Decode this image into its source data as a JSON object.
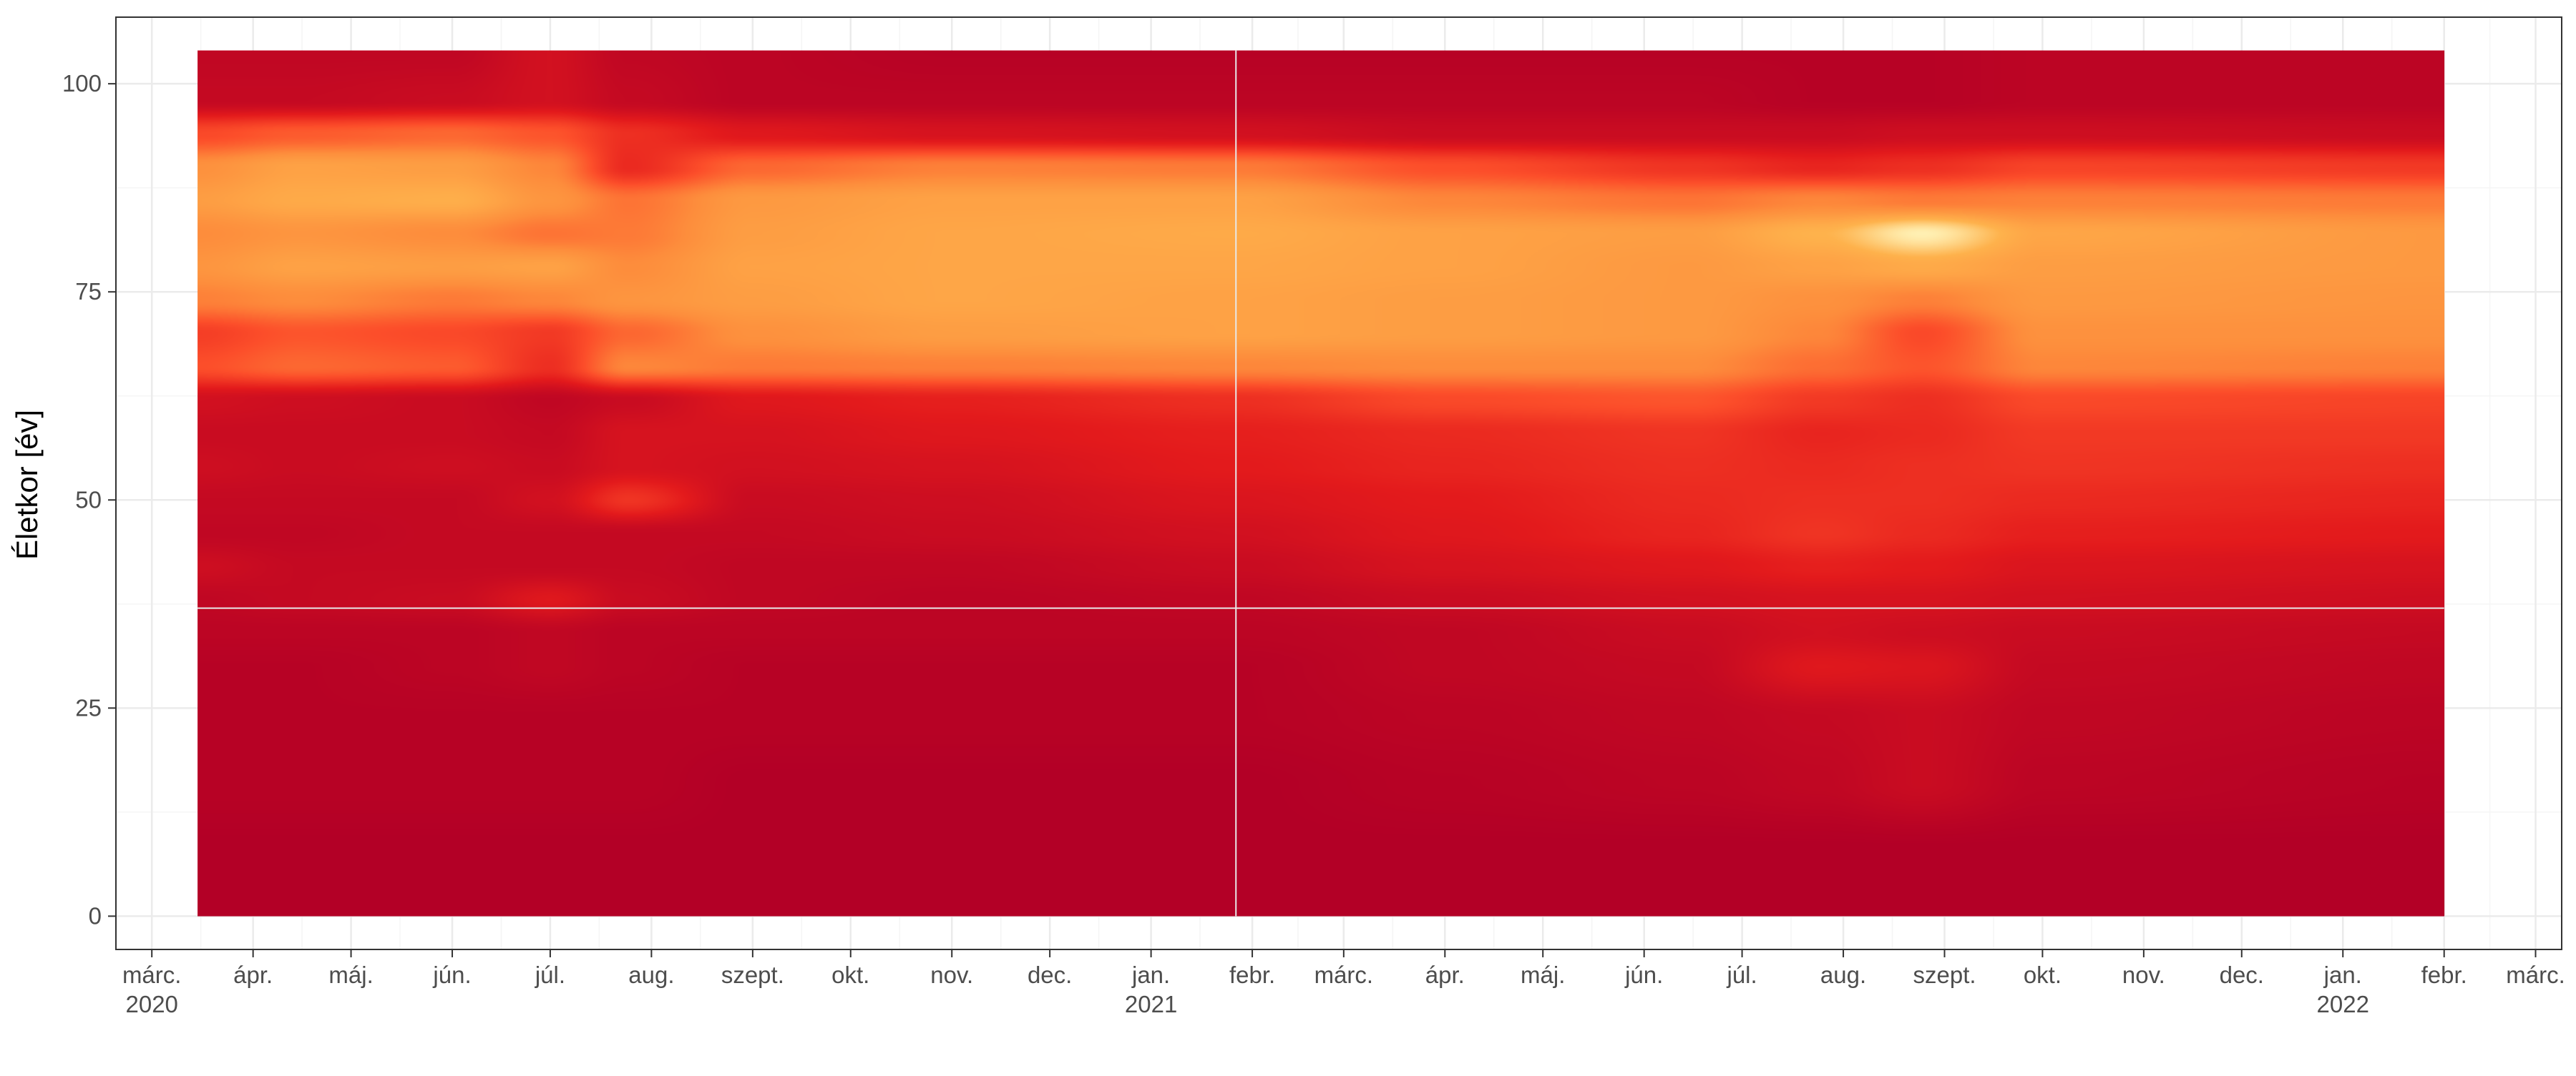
{
  "chart_data": {
    "type": "heatmap",
    "title": "",
    "xlabel": "",
    "ylabel": "Életkor [év]",
    "x_range": [
      "2020-02-19",
      "2022-03-09"
    ],
    "y_range": [
      -4,
      108
    ],
    "grid": true,
    "legend": "none",
    "y_ticks": [
      0,
      25,
      50,
      75,
      100
    ],
    "x_ticks": [
      {
        "date": "2020-03-01",
        "label": "márc.",
        "year": "2020"
      },
      {
        "date": "2020-04-01",
        "label": "ápr."
      },
      {
        "date": "2020-05-01",
        "label": "máj."
      },
      {
        "date": "2020-06-01",
        "label": "jún."
      },
      {
        "date": "2020-07-01",
        "label": "júl."
      },
      {
        "date": "2020-08-01",
        "label": "aug."
      },
      {
        "date": "2020-09-01",
        "label": "szept."
      },
      {
        "date": "2020-10-01",
        "label": "okt."
      },
      {
        "date": "2020-11-01",
        "label": "nov."
      },
      {
        "date": "2020-12-01",
        "label": "dec."
      },
      {
        "date": "2021-01-01",
        "label": "jan.",
        "year": "2021"
      },
      {
        "date": "2021-02-01",
        "label": "febr."
      },
      {
        "date": "2021-03-01",
        "label": "márc."
      },
      {
        "date": "2021-04-01",
        "label": "ápr."
      },
      {
        "date": "2021-05-01",
        "label": "máj."
      },
      {
        "date": "2021-06-01",
        "label": "jún."
      },
      {
        "date": "2021-07-01",
        "label": "júl."
      },
      {
        "date": "2021-08-01",
        "label": "aug."
      },
      {
        "date": "2021-09-01",
        "label": "szept."
      },
      {
        "date": "2021-10-01",
        "label": "okt."
      },
      {
        "date": "2021-11-01",
        "label": "nov."
      },
      {
        "date": "2021-12-01",
        "label": "dec."
      },
      {
        "date": "2022-01-01",
        "label": "jan.",
        "year": "2022"
      },
      {
        "date": "2022-02-01",
        "label": "febr."
      },
      {
        "date": "2022-03-01",
        "label": "márc."
      }
    ],
    "data_extent": {
      "x": [
        "2020-03-15",
        "2022-02-01"
      ],
      "y": [
        0,
        104
      ]
    },
    "reference_lines": [
      {
        "axis": "y",
        "value": 37
      },
      {
        "axis": "x",
        "date": "2021-01-27"
      }
    ],
    "colors": {
      "low": "#b30026",
      "mid_low": "#e31a1c",
      "mid": "#fc4e2a",
      "mid_high": "#fd8d3c",
      "high": "#feb24c",
      "peak": "#ffffcc",
      "panel_border": "#333333",
      "grid_major": "#ebebeb",
      "grid_minor": "#f5f5f5",
      "reference_line": "#e8e8e8"
    },
    "age_bands_y": [
      0,
      8,
      16,
      24,
      30,
      34,
      38,
      42,
      46,
      50,
      54,
      58,
      62,
      66,
      70,
      74,
      78,
      82,
      86,
      90,
      94,
      98,
      104
    ],
    "time_knots_x": [
      "2020-03-15",
      "2020-04-15",
      "2020-06-01",
      "2020-07-01",
      "2020-07-25",
      "2020-09-01",
      "2020-11-01",
      "2021-01-27",
      "2021-04-01",
      "2021-06-15",
      "2021-07-25",
      "2021-08-25",
      "2021-10-01",
      "2022-02-01"
    ],
    "intensity": [
      [
        0.0,
        0.0,
        0.0,
        0.0,
        0.0,
        0.0,
        0.0,
        0.0,
        0.0,
        0.0,
        0.0,
        0.0,
        0.0,
        0.0
      ],
      [
        0.0,
        0.0,
        0.0,
        0.0,
        0.0,
        0.0,
        0.0,
        0.0,
        0.0,
        0.0,
        0.0,
        0.0,
        0.0,
        0.0
      ],
      [
        0.02,
        0.02,
        0.02,
        0.02,
        0.02,
        0.0,
        0.0,
        0.0,
        0.02,
        0.04,
        0.06,
        0.1,
        0.04,
        0.02
      ],
      [
        0.02,
        0.02,
        0.02,
        0.02,
        0.02,
        0.02,
        0.02,
        0.02,
        0.04,
        0.06,
        0.08,
        0.1,
        0.06,
        0.04
      ],
      [
        0.02,
        0.02,
        0.04,
        0.06,
        0.04,
        0.02,
        0.02,
        0.02,
        0.06,
        0.08,
        0.2,
        0.18,
        0.08,
        0.06
      ],
      [
        0.04,
        0.04,
        0.04,
        0.06,
        0.04,
        0.04,
        0.04,
        0.04,
        0.06,
        0.1,
        0.14,
        0.12,
        0.1,
        0.08
      ],
      [
        0.06,
        0.08,
        0.1,
        0.2,
        0.1,
        0.06,
        0.04,
        0.06,
        0.1,
        0.14,
        0.16,
        0.16,
        0.14,
        0.12
      ],
      [
        0.12,
        0.08,
        0.08,
        0.08,
        0.08,
        0.06,
        0.06,
        0.1,
        0.16,
        0.2,
        0.24,
        0.22,
        0.18,
        0.16
      ],
      [
        0.06,
        0.06,
        0.08,
        0.08,
        0.08,
        0.08,
        0.1,
        0.14,
        0.2,
        0.26,
        0.32,
        0.28,
        0.24,
        0.22
      ],
      [
        0.08,
        0.08,
        0.08,
        0.14,
        0.32,
        0.1,
        0.12,
        0.18,
        0.22,
        0.28,
        0.3,
        0.3,
        0.28,
        0.26
      ],
      [
        0.12,
        0.1,
        0.12,
        0.1,
        0.16,
        0.14,
        0.16,
        0.22,
        0.26,
        0.3,
        0.28,
        0.3,
        0.32,
        0.3
      ],
      [
        0.1,
        0.1,
        0.1,
        0.08,
        0.16,
        0.16,
        0.2,
        0.24,
        0.28,
        0.32,
        0.26,
        0.28,
        0.34,
        0.34
      ],
      [
        0.14,
        0.12,
        0.1,
        0.06,
        0.1,
        0.2,
        0.24,
        0.3,
        0.4,
        0.44,
        0.34,
        0.3,
        0.4,
        0.38
      ],
      [
        0.42,
        0.5,
        0.46,
        0.3,
        0.6,
        0.56,
        0.58,
        0.6,
        0.62,
        0.62,
        0.52,
        0.44,
        0.6,
        0.58
      ],
      [
        0.36,
        0.44,
        0.4,
        0.34,
        0.5,
        0.64,
        0.7,
        0.72,
        0.7,
        0.68,
        0.6,
        0.4,
        0.64,
        0.64
      ],
      [
        0.58,
        0.62,
        0.56,
        0.6,
        0.66,
        0.7,
        0.74,
        0.72,
        0.7,
        0.68,
        0.64,
        0.58,
        0.68,
        0.66
      ],
      [
        0.66,
        0.72,
        0.7,
        0.72,
        0.62,
        0.72,
        0.74,
        0.74,
        0.72,
        0.68,
        0.72,
        0.76,
        0.7,
        0.68
      ],
      [
        0.62,
        0.66,
        0.62,
        0.54,
        0.56,
        0.7,
        0.74,
        0.76,
        0.72,
        0.7,
        0.8,
        0.96,
        0.74,
        0.68
      ],
      [
        0.7,
        0.76,
        0.78,
        0.66,
        0.54,
        0.68,
        0.72,
        0.72,
        0.6,
        0.54,
        0.6,
        0.56,
        0.58,
        0.56
      ],
      [
        0.64,
        0.72,
        0.7,
        0.6,
        0.28,
        0.5,
        0.58,
        0.56,
        0.42,
        0.32,
        0.26,
        0.3,
        0.38,
        0.34
      ],
      [
        0.4,
        0.46,
        0.5,
        0.44,
        0.3,
        0.2,
        0.16,
        0.14,
        0.1,
        0.1,
        0.1,
        0.12,
        0.12,
        0.1
      ],
      [
        0.08,
        0.08,
        0.1,
        0.14,
        0.08,
        0.04,
        0.04,
        0.04,
        0.04,
        0.04,
        0.02,
        0.02,
        0.04,
        0.04
      ],
      [
        0.06,
        0.06,
        0.06,
        0.14,
        0.06,
        0.04,
        0.02,
        0.02,
        0.02,
        0.02,
        0.02,
        0.02,
        0.04,
        0.04
      ]
    ]
  }
}
